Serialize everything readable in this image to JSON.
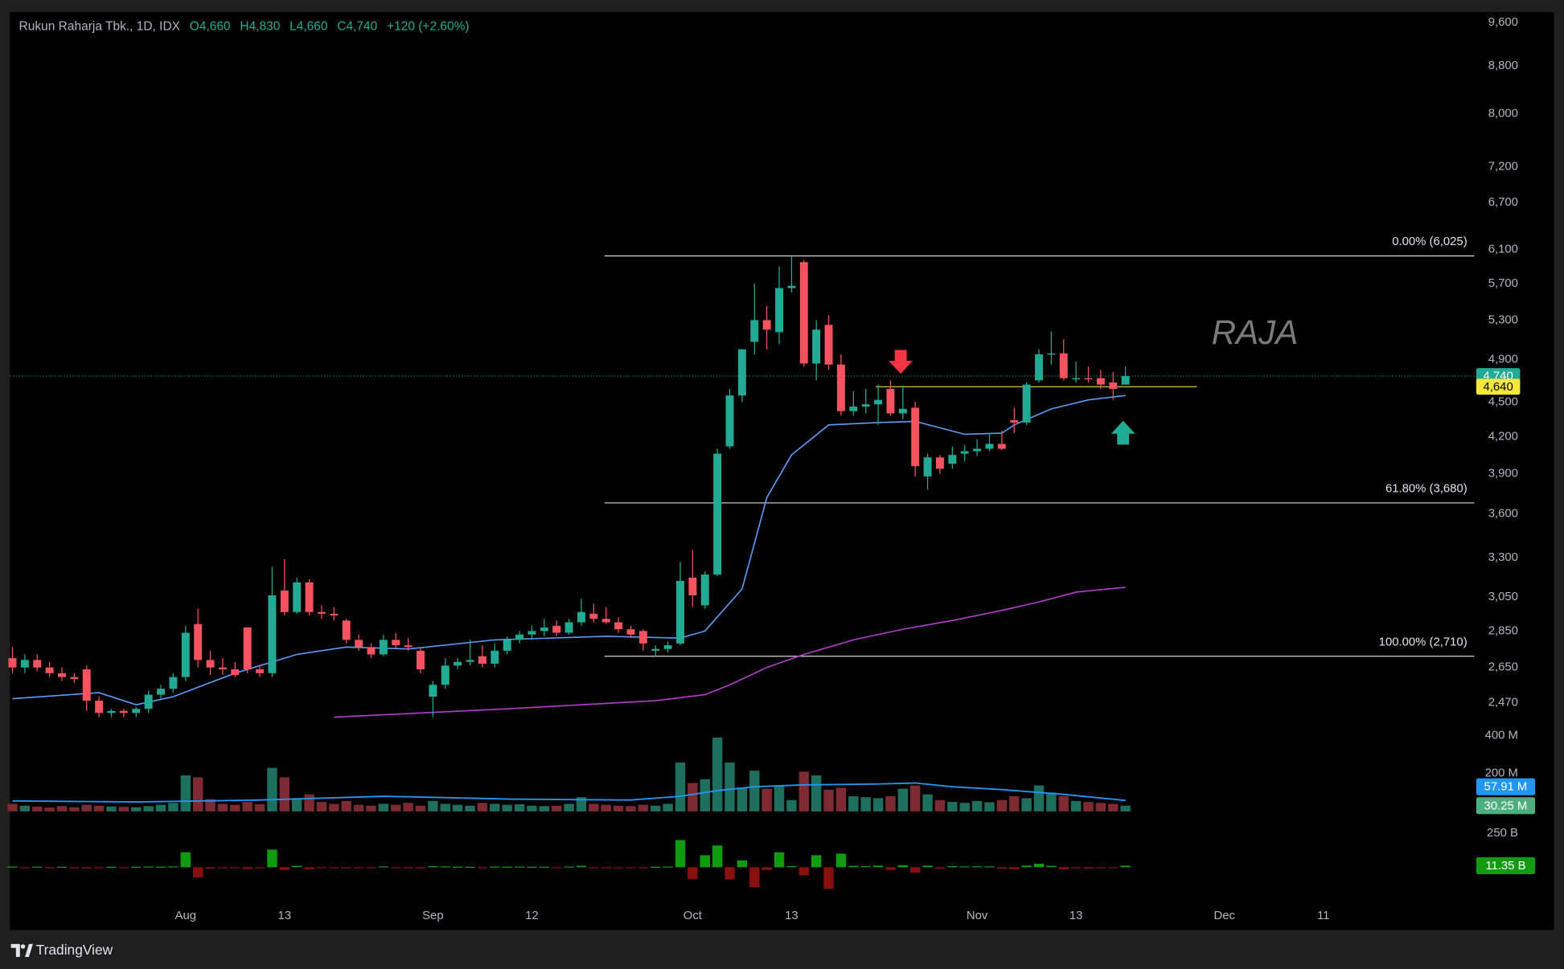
{
  "header": {
    "symbol": "Rukun Raharja Tbk., 1D, IDX",
    "open": "O4,660",
    "high": "H4,830",
    "low": "L4,660",
    "close": "C4,740",
    "change": "+120 (+2.60%)"
  },
  "chart_data": {
    "type": "candlestick",
    "log_scale": true,
    "up_color": "#22ab94",
    "down_color": "#f7525f",
    "xlim": [
      -0.2,
      118.2
    ],
    "xticks": [
      {
        "value": 14,
        "label": "Aug"
      },
      {
        "value": 22,
        "label": "13"
      },
      {
        "value": 34,
        "label": "Sep"
      },
      {
        "value": 42,
        "label": "12"
      },
      {
        "value": 55,
        "label": "Oct"
      },
      {
        "value": 63,
        "label": "13"
      },
      {
        "value": 78,
        "label": "Nov"
      },
      {
        "value": 86,
        "label": "13"
      },
      {
        "value": 98,
        "label": "Dec"
      },
      {
        "value": 106,
        "label": "11"
      }
    ],
    "ylim": [
      2350,
      9800
    ],
    "yticks": [
      {
        "value": 9600,
        "label": "9,600"
      },
      {
        "value": 8800,
        "label": "8,800"
      },
      {
        "value": 8000,
        "label": "8,000"
      },
      {
        "value": 7200,
        "label": "7,200"
      },
      {
        "value": 6700,
        "label": "6,700"
      },
      {
        "value": 6100,
        "label": "6,100"
      },
      {
        "value": 5700,
        "label": "5,700"
      },
      {
        "value": 5300,
        "label": "5,300"
      },
      {
        "value": 4900,
        "label": "4,900"
      },
      {
        "value": 4500,
        "label": "4,500"
      },
      {
        "value": 4200,
        "label": "4,200"
      },
      {
        "value": 3900,
        "label": "3,900"
      },
      {
        "value": 3600,
        "label": "3,600"
      },
      {
        "value": 3300,
        "label": "3,300"
      },
      {
        "value": 3050,
        "label": "3,050"
      },
      {
        "value": 2850,
        "label": "2,850"
      },
      {
        "value": 2650,
        "label": "2,650"
      },
      {
        "value": 2470,
        "label": "2,470"
      }
    ],
    "open": [
      2700,
      2650,
      2690,
      2650,
      2620,
      2600,
      2640,
      2480,
      2420,
      2430,
      2420,
      2440,
      2510,
      2540,
      2600,
      2890,
      2690,
      2650,
      2640,
      2870,
      2640,
      2620,
      3090,
      2960,
      3140,
      2960,
      2950,
      2910,
      2800,
      2760,
      2720,
      2800,
      2770,
      2740,
      2500,
      2560,
      2660,
      2680,
      2710,
      2670,
      2740,
      2800,
      2830,
      2850,
      2880,
      2840,
      2900,
      2950,
      2920,
      2900,
      2860,
      2850,
      2740,
      2750,
      2780,
      3170,
      3000,
      3190,
      4120,
      4560,
      5075,
      5300,
      5175,
      5650,
      5950,
      4860,
      5250,
      4850,
      4420,
      4460,
      4480,
      4620,
      4400,
      4450,
      3880,
      4030,
      3980,
      4060,
      4080,
      4100,
      4140,
      4340,
      4320,
      4700,
      4950,
      4960,
      4720,
      4720,
      4720,
      4680,
      4660
    ],
    "high": [
      2760,
      2720,
      2720,
      2680,
      2650,
      2620,
      2660,
      2500,
      2440,
      2440,
      2450,
      2530,
      2560,
      2620,
      2880,
      2980,
      2740,
      2700,
      2680,
      2870,
      2660,
      3240,
      3290,
      3170,
      3160,
      3000,
      2990,
      2920,
      2830,
      2780,
      2830,
      2840,
      2810,
      2760,
      2580,
      2700,
      2700,
      2800,
      2770,
      2780,
      2820,
      2850,
      2880,
      2920,
      2910,
      2920,
      3040,
      3010,
      2990,
      2930,
      2880,
      2860,
      2770,
      2790,
      3270,
      3350,
      3210,
      4100,
      4620,
      5000,
      5700,
      5450,
      5900,
      6025,
      5975,
      5300,
      5350,
      4950,
      4600,
      4620,
      4660,
      4700,
      4650,
      4500,
      4060,
      4050,
      4120,
      4130,
      4180,
      4220,
      4250,
      4450,
      4680,
      5000,
      5180,
      5100,
      4880,
      4830,
      4800,
      4780,
      4830
    ],
    "low": [
      2620,
      2620,
      2630,
      2600,
      2580,
      2570,
      2430,
      2400,
      2400,
      2400,
      2400,
      2420,
      2490,
      2520,
      2580,
      2650,
      2610,
      2610,
      2600,
      2620,
      2600,
      2600,
      2940,
      2950,
      2940,
      2920,
      2910,
      2780,
      2740,
      2700,
      2710,
      2750,
      2740,
      2620,
      2400,
      2540,
      2640,
      2660,
      2650,
      2650,
      2720,
      2780,
      2800,
      2820,
      2820,
      2830,
      2880,
      2900,
      2890,
      2840,
      2810,
      2740,
      2710,
      2730,
      2770,
      2990,
      2980,
      3180,
      4100,
      4500,
      4950,
      5000,
      5050,
      5600,
      4830,
      4700,
      4800,
      4380,
      4380,
      4400,
      4300,
      4380,
      4350,
      3880,
      3780,
      3900,
      3940,
      4000,
      4040,
      4080,
      4090,
      4230,
      4300,
      4680,
      4850,
      4700,
      4680,
      4680,
      4620,
      4520,
      4660
    ],
    "close": [
      2650,
      2690,
      2650,
      2620,
      2600,
      2590,
      2480,
      2420,
      2430,
      2420,
      2440,
      2510,
      2540,
      2600,
      2840,
      2690,
      2650,
      2640,
      2610,
      2640,
      2620,
      3060,
      2960,
      3140,
      2960,
      2950,
      2940,
      2800,
      2760,
      2720,
      2800,
      2770,
      2760,
      2640,
      2560,
      2660,
      2680,
      2690,
      2670,
      2740,
      2800,
      2830,
      2850,
      2870,
      2840,
      2900,
      2960,
      2920,
      2900,
      2860,
      2830,
      2780,
      2750,
      2770,
      3150,
      3060,
      3190,
      4060,
      4560,
      5000,
      5300,
      5200,
      5650,
      5675,
      4860,
      5200,
      4850,
      4420,
      4460,
      4480,
      4520,
      4400,
      4440,
      3960,
      4030,
      3940,
      4050,
      4080,
      4100,
      4140,
      4100,
      4320,
      4660,
      4950,
      4960,
      4720,
      4720,
      4710,
      4660,
      4620,
      4740
    ],
    "lines": [
      {
        "color": "#5b9cf6",
        "x": [
          0,
          7,
          10,
          13,
          18,
          23,
          27,
          32,
          39,
          48,
          54,
          56,
          59,
          61,
          63,
          66,
          70,
          73,
          77,
          80,
          81,
          84,
          87,
          90
        ],
        "values": [
          2490,
          2520,
          2460,
          2500,
          2620,
          2720,
          2760,
          2750,
          2800,
          2820,
          2810,
          2850,
          3100,
          3720,
          4050,
          4300,
          4320,
          4330,
          4220,
          4230,
          4300,
          4440,
          4520,
          4560
        ]
      },
      {
        "color": "#b33ec9",
        "x": [
          26,
          40,
          52,
          56,
          58,
          61,
          64,
          68,
          72,
          76,
          80,
          83,
          86,
          90
        ],
        "values": [
          2400,
          2440,
          2480,
          2510,
          2560,
          2650,
          2720,
          2800,
          2860,
          2910,
          2970,
          3020,
          3080,
          3110
        ]
      }
    ],
    "fib": [
      {
        "value": 6025,
        "label": "0.00% (6,025)"
      },
      {
        "value": 3680,
        "label": "61.80% (3,680)"
      },
      {
        "value": 2710,
        "label": "100.00% (2,710)"
      }
    ],
    "level": {
      "value": 4640,
      "label": "4,640",
      "color": "#f5e83a"
    },
    "last_price": {
      "value": 4740,
      "label": "4,740"
    },
    "watermark": "RAJA"
  },
  "volume": {
    "type": "bar",
    "up_color": "#1f6f5f",
    "down_color": "#7d2a33",
    "ylim": [
      0,
      420
    ],
    "yticks": [
      {
        "value": 200,
        "label": "200 M"
      },
      {
        "value": 400,
        "label": "400 M"
      }
    ],
    "values": [
      40,
      30,
      25,
      20,
      28,
      22,
      35,
      30,
      26,
      24,
      22,
      28,
      35,
      45,
      190,
      180,
      65,
      40,
      35,
      50,
      38,
      230,
      180,
      70,
      90,
      50,
      40,
      55,
      35,
      30,
      40,
      35,
      45,
      30,
      55,
      40,
      35,
      30,
      45,
      40,
      35,
      38,
      30,
      28,
      30,
      40,
      75,
      40,
      35,
      30,
      28,
      35,
      30,
      40,
      258,
      150,
      170,
      390,
      258,
      126,
      215,
      120,
      135,
      60,
      210,
      190,
      115,
      125,
      80,
      75,
      70,
      80,
      120,
      137,
      90,
      60,
      50,
      45,
      55,
      48,
      60,
      80,
      70,
      137,
      100,
      80,
      55,
      50,
      45,
      40,
      30.25
    ],
    "ma": {
      "color": "#2196f3",
      "x": [
        0,
        10,
        20,
        30,
        40,
        50,
        54,
        57,
        60,
        64,
        70,
        73,
        76,
        80,
        85,
        90
      ],
      "values": [
        55,
        50,
        60,
        80,
        65,
        60,
        80,
        110,
        130,
        140,
        145,
        150,
        130,
        115,
        90,
        57.91
      ]
    },
    "tags": [
      {
        "value": 57.91,
        "label": "57.91 M",
        "color": "#2196f3"
      },
      {
        "value": 30.25,
        "label": "30.25 M",
        "color": "#4caf7d"
      }
    ]
  },
  "indicator": {
    "type": "bar",
    "up_color": "#0f9d0f",
    "down_color": "#8a1010",
    "ylim": [
      -400,
      300
    ],
    "yticks": [
      {
        "value": 250,
        "label": "250 B"
      }
    ],
    "values": [
      5,
      -3,
      4,
      -5,
      3,
      -4,
      -8,
      -6,
      3,
      -2,
      3,
      5,
      4,
      6,
      110,
      -74,
      -10,
      -6,
      -5,
      -12,
      -4,
      130,
      -20,
      10,
      -15,
      -6,
      -5,
      -8,
      -5,
      -4,
      6,
      -4,
      -5,
      -8,
      8,
      6,
      4,
      3,
      -5,
      5,
      4,
      5,
      3,
      4,
      -3,
      5,
      10,
      -6,
      -5,
      -4,
      -4,
      -6,
      3,
      5,
      200,
      -88,
      88,
      160,
      -90,
      50,
      -147,
      -20,
      110,
      8,
      -60,
      88,
      -160,
      100,
      10,
      8,
      12,
      -20,
      15,
      -40,
      12,
      -10,
      8,
      6,
      7,
      6,
      -10,
      -15,
      12,
      25,
      10,
      -15,
      -8,
      -10,
      -7,
      -6,
      11.35
    ],
    "tag": {
      "value": 11.35,
      "label": "11.35 B",
      "color": "#139b13"
    }
  },
  "footer": {
    "brand": "TradingView"
  }
}
